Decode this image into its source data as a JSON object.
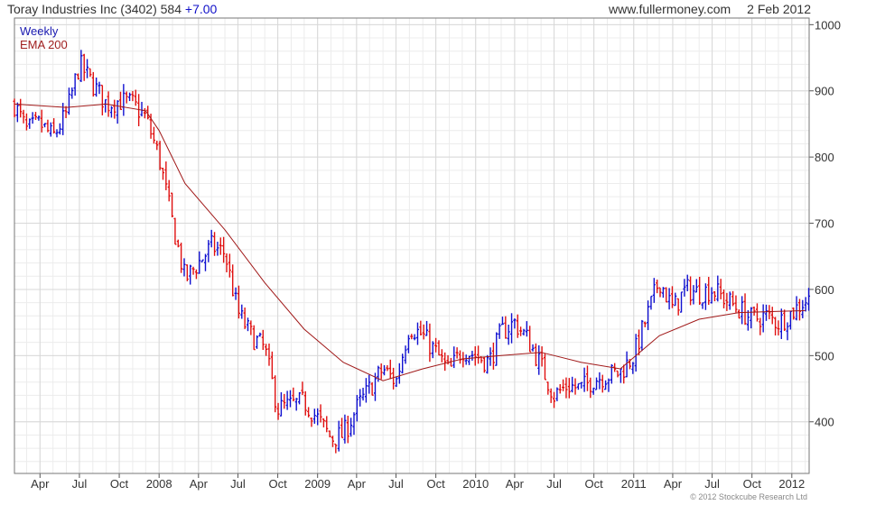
{
  "header": {
    "title": "Toray Industries Inc (3402) 584",
    "change": "+7.00",
    "site": "www.fullermoney.com",
    "date": "2 Feb 2012"
  },
  "legend": {
    "period": "Weekly",
    "ema": "EMA 200"
  },
  "copyright": "© 2012 Stockcube Research Ltd",
  "colors": {
    "up": "#1010d0",
    "down": "#e01010",
    "ema": "#a01818",
    "grid": "#d8d8d8"
  },
  "chart_data": {
    "type": "candlestick",
    "title": "Toray Industries Inc (3402) 584",
    "ylim": [
      322,
      1010
    ],
    "y_ticks": [
      400,
      500,
      600,
      700,
      800,
      900,
      1000
    ],
    "x_ticks": [
      "Apr",
      "Jul",
      "Oct",
      "2008",
      "Apr",
      "Jul",
      "Oct",
      "2009",
      "Apr",
      "Jul",
      "Oct",
      "2010",
      "Apr",
      "Jul",
      "Oct",
      "2011",
      "Apr",
      "Jul",
      "Oct",
      "2012"
    ],
    "x_tick_dates": [
      "2007-04",
      "2007-07",
      "2007-10",
      "2008-01",
      "2008-04",
      "2008-07",
      "2008-10",
      "2009-01",
      "2009-04",
      "2009-07",
      "2009-10",
      "2010-01",
      "2010-04",
      "2010-07",
      "2010-10",
      "2011-01",
      "2011-04",
      "2011-07",
      "2011-10",
      "2012-01"
    ],
    "grid": true,
    "series": [
      {
        "name": "Weekly",
        "close_path": [
          [
            "2007-02",
            880
          ],
          [
            "2007-03",
            840
          ],
          [
            "2007-04",
            850
          ],
          [
            "2007-05",
            830
          ],
          [
            "2007-06",
            865
          ],
          [
            "2007-07",
            940
          ],
          [
            "2007-08",
            910
          ],
          [
            "2007-09",
            880
          ],
          [
            "2007-10",
            885
          ],
          [
            "2007-11",
            880
          ],
          [
            "2007-12",
            860
          ],
          [
            "2008-01",
            800
          ],
          [
            "2008-02",
            700
          ],
          [
            "2008-03",
            615
          ],
          [
            "2008-04",
            640
          ],
          [
            "2008-05",
            665
          ],
          [
            "2008-06",
            655
          ],
          [
            "2008-07",
            565
          ],
          [
            "2008-08",
            530
          ],
          [
            "2008-09",
            510
          ],
          [
            "2008-10",
            420
          ],
          [
            "2008-11",
            425
          ],
          [
            "2008-12",
            430
          ],
          [
            "2009-01",
            405
          ],
          [
            "2009-02",
            375
          ],
          [
            "2009-03",
            380
          ],
          [
            "2009-04",
            420
          ],
          [
            "2009-05",
            450
          ],
          [
            "2009-06",
            480
          ],
          [
            "2009-07",
            460
          ],
          [
            "2009-08",
            545
          ],
          [
            "2009-09",
            530
          ],
          [
            "2009-10",
            505
          ],
          [
            "2009-11",
            475
          ],
          [
            "2009-12",
            510
          ],
          [
            "2010-01",
            500
          ],
          [
            "2010-02",
            490
          ],
          [
            "2010-03",
            535
          ],
          [
            "2010-04",
            550
          ],
          [
            "2010-05",
            525
          ],
          [
            "2010-06",
            485
          ],
          [
            "2010-07",
            440
          ],
          [
            "2010-08",
            455
          ],
          [
            "2010-09",
            450
          ],
          [
            "2010-10",
            465
          ],
          [
            "2010-11",
            470
          ],
          [
            "2010-12",
            475
          ],
          [
            "2011-01",
            500
          ],
          [
            "2011-02",
            560
          ],
          [
            "2011-03",
            615
          ],
          [
            "2011-04",
            570
          ],
          [
            "2011-05",
            600
          ],
          [
            "2011-06",
            595
          ],
          [
            "2011-07",
            600
          ],
          [
            "2011-08",
            585
          ],
          [
            "2011-09",
            570
          ],
          [
            "2011-10",
            555
          ],
          [
            "2011-11",
            560
          ],
          [
            "2011-12",
            550
          ],
          [
            "2012-01",
            565
          ],
          [
            "2012-02",
            584
          ]
        ]
      },
      {
        "name": "EMA 200",
        "points": [
          [
            "2007-02",
            880
          ],
          [
            "2007-06",
            875
          ],
          [
            "2007-09",
            880
          ],
          [
            "2007-12",
            870
          ],
          [
            "2008-01",
            840
          ],
          [
            "2008-03",
            760
          ],
          [
            "2008-06",
            690
          ],
          [
            "2008-09",
            610
          ],
          [
            "2008-12",
            540
          ],
          [
            "2009-03",
            490
          ],
          [
            "2009-06",
            462
          ],
          [
            "2009-09",
            480
          ],
          [
            "2009-12",
            495
          ],
          [
            "2010-03",
            500
          ],
          [
            "2010-06",
            505
          ],
          [
            "2010-09",
            490
          ],
          [
            "2010-12",
            480
          ],
          [
            "2011-03",
            530
          ],
          [
            "2011-06",
            555
          ],
          [
            "2011-09",
            565
          ],
          [
            "2011-12",
            567
          ],
          [
            "2012-02",
            568
          ]
        ]
      }
    ]
  }
}
